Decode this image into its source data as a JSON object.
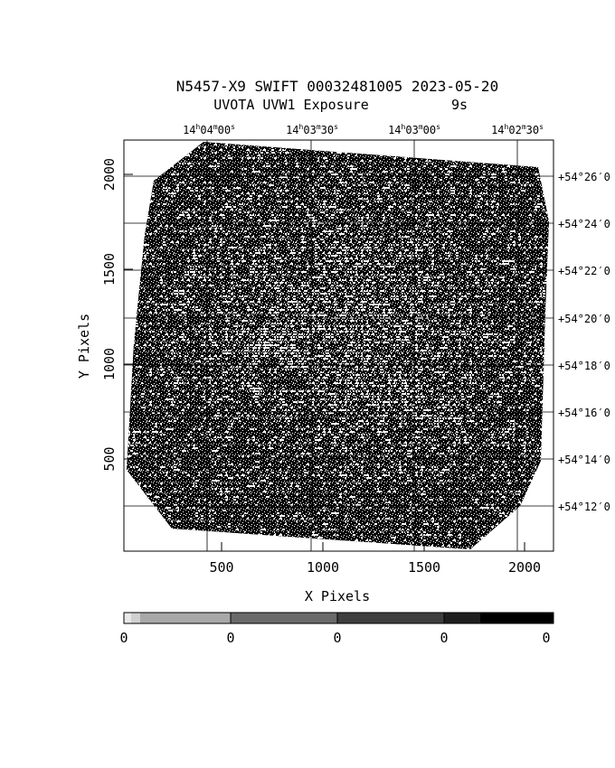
{
  "header": {
    "title_line1": "N5457-X9 SWIFT 00032481005 2023-05-20",
    "title_line2_left": "UVOTA UVW1 Exposure",
    "title_line2_right": "9s"
  },
  "axes": {
    "xlabel": "X Pixels",
    "ylabel": "Y Pixels",
    "x_tick_labels": [
      "500",
      "1000",
      "1500",
      "2000"
    ],
    "y_tick_labels": [
      "500",
      "1000",
      "1500",
      "2000"
    ],
    "ra_labels": [
      {
        "h": "14",
        "m": "04",
        "s": "00"
      },
      {
        "h": "14",
        "m": "03",
        "s": "30"
      },
      {
        "h": "14",
        "m": "03",
        "s": "00"
      },
      {
        "h": "14",
        "m": "02",
        "s": "30"
      }
    ],
    "dec_labels": [
      "+54°26′0",
      "+54°24′0",
      "+54°22′0",
      "+54°20′0",
      "+54°18′0",
      "+54°16′0",
      "+54°14′0",
      "+54°12′0"
    ]
  },
  "colorbar": {
    "tick_labels": [
      "0",
      "0",
      "0",
      "0",
      "0"
    ]
  },
  "image": {
    "description_colors": {
      "background": "#ffffff",
      "ink": "#000000"
    }
  }
}
